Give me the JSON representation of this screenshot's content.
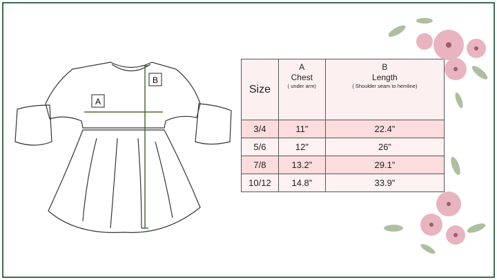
{
  "diagram_labels": {
    "a": "A",
    "b": "B"
  },
  "table": {
    "headers": [
      {
        "letter": "",
        "title": "Size",
        "note": ""
      },
      {
        "letter": "A",
        "title": "Chest",
        "note": "( under arm)"
      },
      {
        "letter": "B",
        "title": "Length",
        "note": "( Shoulder seam to hemline)"
      }
    ],
    "rows": [
      {
        "size": "3/4",
        "chest": "11”",
        "length": "22.4”"
      },
      {
        "size": "5/6",
        "chest": "12”",
        "length": "26”"
      },
      {
        "size": "7/8",
        "chest": "13.2”",
        "length": "29.1”"
      },
      {
        "size": "10/12",
        "chest": "14.8”",
        "length": "33.9”"
      }
    ]
  },
  "colors": {
    "frame": "#3f6b4f",
    "measure_line": "#4a6b2a",
    "row_highlight": "#fcdcdc",
    "row_light": "#fdf1f1"
  }
}
